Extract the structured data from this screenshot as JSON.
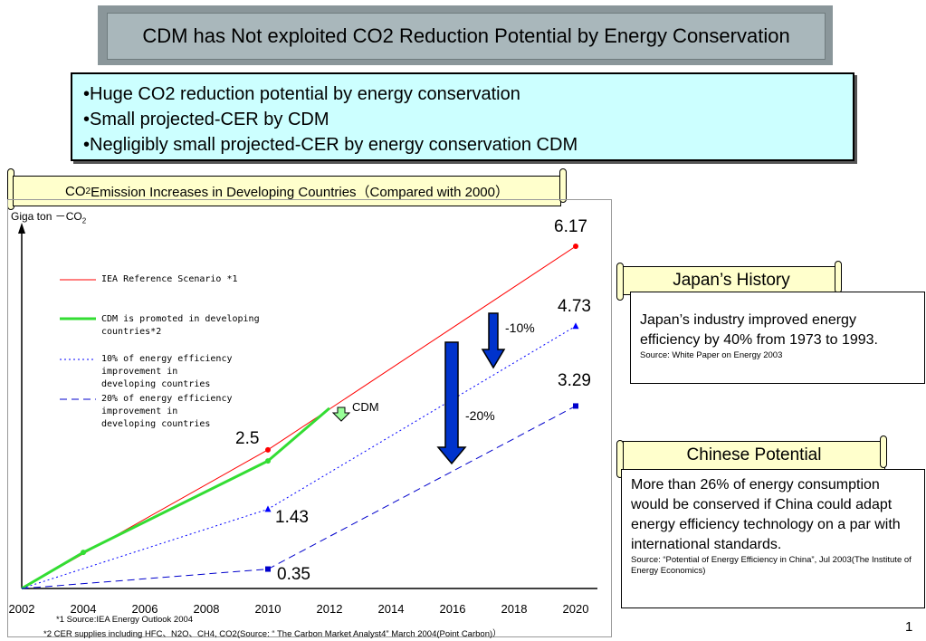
{
  "title": "CDM has Not exploited CO2 Reduction Potential by Energy Conservation",
  "bullets": [
    "•Huge CO2 reduction potential by energy conservation",
    "•Small projected-CER by CDM",
    "•Negligibly small projected-CER by energy conservation CDM"
  ],
  "chart_title": {
    "main": "CO",
    "sub": "2",
    "rest": " Emission Increases in Developing Countries（Compared with 2000）"
  },
  "chart_data": {
    "type": "line",
    "ylabel": {
      "main": "Giga ton －CO",
      "sub": "2"
    },
    "x_ticks": [
      "2002",
      "2004",
      "2006",
      "2008",
      "2010",
      "2012",
      "2014",
      "2016",
      "2018",
      "2020"
    ],
    "xlim": [
      2002,
      2020
    ],
    "ylim": [
      0,
      7
    ],
    "series": [
      {
        "name": "IEA Reference Scenario *1",
        "color": "#ff0000",
        "style": "solid",
        "x": [
          2002,
          2010,
          2020
        ],
        "y": [
          0,
          2.5,
          6.17
        ]
      },
      {
        "name": "CDM is promoted in developing countries*2",
        "color": "#33dd33",
        "style": "solid-thick",
        "x": [
          2002,
          2004,
          2010,
          2012
        ],
        "y": [
          0,
          0.65,
          2.3,
          3.25
        ]
      },
      {
        "name": "10% of energy efficiency improvement in developing countries",
        "color": "#0000ff",
        "style": "dotted",
        "x": [
          2002,
          2010,
          2020
        ],
        "y": [
          0,
          1.43,
          4.73
        ]
      },
      {
        "name": "20% of energy efficiency improvement in developing countries",
        "color": "#0000cc",
        "style": "dashed",
        "x": [
          2002,
          2010,
          2020
        ],
        "y": [
          0,
          0.35,
          3.29
        ]
      }
    ],
    "value_labels": [
      "6.17",
      "4.73",
      "3.29",
      "2.5",
      "1.43",
      "0.35"
    ],
    "annotations": {
      "cdm": "CDM",
      "minus10": "-10%",
      "minus20": "-20%"
    }
  },
  "japan": {
    "heading": "Japan’s History",
    "text": "Japan’s industry improved energy efficiency by 40% from 1973 to 1993.",
    "source": "Source: White Paper on Energy 2003"
  },
  "china": {
    "heading": "Chinese Potential",
    "text": "More than 26% of energy consumption would be conserved if China could adapt energy efficiency technology on a par with international standards.",
    "source": "Source: “Potential of Energy Efficiency in China”, Jul 2003(The Institute of Energy  Economics)"
  },
  "footnotes": [
    "*1 Source:IEA   Energy Outlook 2004",
    "*2  CER supplies including HFC、N2O、CH4, CO2(Source: “ The Carbon Market Analyst4” March 2004(Point Carbon)）"
  ],
  "page_number": "1",
  "colors": {
    "title_bg": "#a9b7bb",
    "bullet_bg": "#ccffff",
    "scroll_bg": "#ffffcc",
    "arrow_blue": "#0033cc"
  }
}
